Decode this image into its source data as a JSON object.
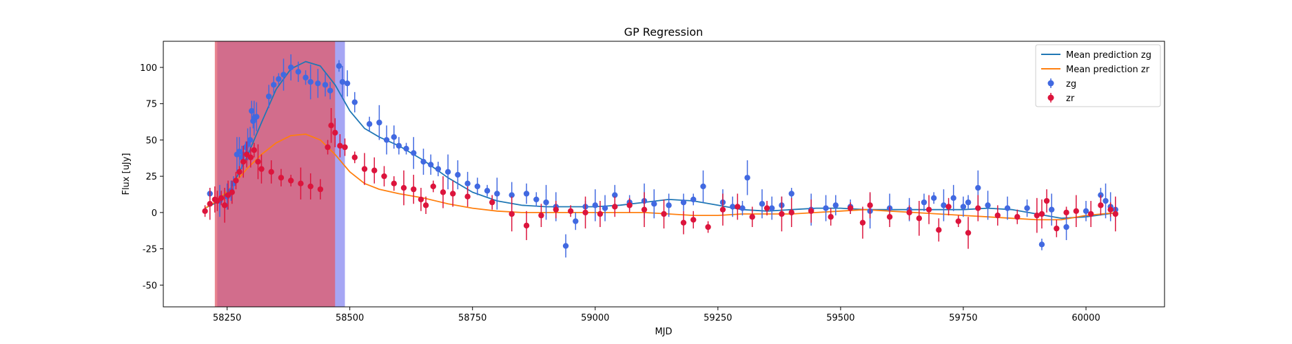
{
  "chart_data": {
    "type": "scatter",
    "title": "GP Regression",
    "xlabel": "MJD",
    "ylabel": "Flux [uJy]",
    "xlim": [
      58120,
      60160
    ],
    "ylim": [
      -65,
      118
    ],
    "xticks": [
      58250,
      58500,
      58750,
      59000,
      59250,
      59500,
      59750,
      60000
    ],
    "yticks": [
      -50,
      -25,
      0,
      25,
      50,
      75,
      100
    ],
    "grid": false,
    "legend_position": "top-right",
    "shaded_regions": [
      {
        "x0": 58230,
        "x1": 58490,
        "color": "#8080f0",
        "label": ""
      },
      {
        "x0": 58225,
        "x1": 58470,
        "color": "#e05a6a",
        "label": ""
      }
    ],
    "series": [
      {
        "name": "Mean prediction zg",
        "kind": "line",
        "color": "#1f77b4",
        "x": [
          58205,
          58230,
          58260,
          58290,
          58320,
          58350,
          58380,
          58410,
          58440,
          58470,
          58500,
          58530,
          58560,
          58600,
          58650,
          58700,
          58750,
          58800,
          58850,
          58900,
          58950,
          59000,
          59050,
          59100,
          59150,
          59200,
          59250,
          59300,
          59350,
          59400,
          59450,
          59500,
          59550,
          59600,
          59650,
          59700,
          59750,
          59800,
          59850,
          59900,
          59950,
          60000,
          60065
        ],
        "y": [
          3,
          7,
          18,
          38,
          62,
          85,
          99,
          104,
          101,
          88,
          70,
          58,
          52,
          46,
          36,
          24,
          14,
          8,
          5,
          4,
          4,
          4,
          5,
          7,
          9,
          8,
          5,
          2,
          1,
          2,
          3,
          3,
          2,
          2,
          2,
          2,
          2,
          3,
          2,
          -1,
          -4,
          -3,
          0
        ]
      },
      {
        "name": "Mean prediction zr",
        "kind": "line",
        "color": "#ff7f0e",
        "x": [
          58205,
          58230,
          58260,
          58290,
          58320,
          58350,
          58380,
          58410,
          58440,
          58470,
          58500,
          58530,
          58560,
          58600,
          58650,
          58700,
          58750,
          58800,
          58850,
          58900,
          58950,
          59000,
          59050,
          59100,
          59150,
          59200,
          59250,
          59300,
          59350,
          59400,
          59450,
          59500,
          59550,
          59600,
          59650,
          59700,
          59750,
          59800,
          59850,
          59900,
          59950,
          60000,
          60065
        ],
        "y": [
          3,
          8,
          18,
          30,
          40,
          48,
          53,
          54,
          50,
          40,
          28,
          20,
          16,
          13,
          10,
          6,
          3,
          1,
          0,
          0,
          0,
          0,
          0,
          0,
          -1,
          -2,
          -2,
          -1,
          -1,
          -1,
          0,
          1,
          2,
          1,
          0,
          -1,
          -2,
          -3,
          -4,
          -5,
          -5,
          -2,
          0
        ]
      },
      {
        "name": "zg",
        "kind": "points",
        "color": "#4169e1",
        "x": [
          58215,
          58235,
          58250,
          58258,
          58263,
          58270,
          58275,
          58280,
          58283,
          58288,
          58292,
          58297,
          58300,
          58303,
          58305,
          58310,
          58335,
          58345,
          58355,
          58365,
          58380,
          58395,
          58410,
          58420,
          58435,
          58450,
          58460,
          58478,
          58485,
          58495,
          58510,
          58540,
          58560,
          58575,
          58590,
          58600,
          58615,
          58630,
          58650,
          58665,
          58680,
          58700,
          58720,
          58740,
          58760,
          58780,
          58800,
          58830,
          58860,
          58880,
          58900,
          58920,
          58940,
          58960,
          58980,
          59000,
          59020,
          59040,
          59070,
          59100,
          59120,
          59150,
          59180,
          59200,
          59220,
          59260,
          59280,
          59300,
          59310,
          59340,
          59360,
          59380,
          59400,
          59440,
          59470,
          59490,
          59520,
          59560,
          59600,
          59640,
          59670,
          59690,
          59710,
          59730,
          59750,
          59760,
          59780,
          59800,
          59840,
          59880,
          59910,
          59930,
          59960,
          60000,
          60030,
          60040,
          60050,
          60060
        ],
        "y": [
          13,
          8,
          11,
          15,
          20,
          40,
          42,
          38,
          40,
          45,
          47,
          50,
          70,
          63,
          65,
          66,
          80,
          88,
          92,
          95,
          100,
          97,
          93,
          90,
          89,
          88,
          84,
          101,
          90,
          89,
          76,
          61,
          62,
          50,
          52,
          46,
          44,
          41,
          35,
          33,
          30,
          28,
          26,
          20,
          18,
          15,
          13,
          12,
          13,
          9,
          7,
          4,
          -23,
          -6,
          4,
          5,
          3,
          12,
          7,
          8,
          6,
          5,
          7,
          9,
          18,
          7,
          4,
          3,
          24,
          6,
          3,
          5,
          13,
          2,
          3,
          5,
          4,
          1,
          3,
          2,
          7,
          10,
          5,
          10,
          4,
          7,
          17,
          5,
          3,
          3,
          -22,
          2,
          -10,
          1,
          12,
          8,
          4,
          2
        ]
      },
      {
        "name": "zr",
        "kind": "points",
        "color": "#dc143c",
        "x": [
          58205,
          58215,
          58225,
          58230,
          58238,
          58245,
          58252,
          58260,
          58268,
          58275,
          58283,
          58290,
          58298,
          58305,
          58313,
          58320,
          58340,
          58360,
          58380,
          58400,
          58420,
          58440,
          58455,
          58462,
          58470,
          58480,
          58490,
          58510,
          58530,
          58550,
          58570,
          58590,
          58610,
          58630,
          58645,
          58655,
          58670,
          58690,
          58710,
          58740,
          58790,
          58830,
          58860,
          58890,
          58920,
          58950,
          58980,
          59010,
          59040,
          59070,
          59100,
          59140,
          59180,
          59200,
          59230,
          59260,
          59290,
          59320,
          59350,
          59380,
          59400,
          59440,
          59480,
          59520,
          59545,
          59560,
          59600,
          59640,
          59660,
          59680,
          59700,
          59720,
          59740,
          59760,
          59780,
          59820,
          59860,
          59900,
          59910,
          59920,
          59940,
          59960,
          59980,
          60010,
          60030,
          60050,
          60060
        ],
        "y": [
          1,
          6,
          9,
          8,
          10,
          5,
          12,
          14,
          22,
          28,
          35,
          40,
          38,
          43,
          35,
          30,
          28,
          24,
          22,
          20,
          18,
          16,
          45,
          60,
          55,
          46,
          45,
          38,
          30,
          29,
          25,
          20,
          17,
          16,
          9,
          5,
          18,
          14,
          13,
          11,
          7,
          -1,
          -9,
          -2,
          2,
          1,
          0,
          -1,
          4,
          5,
          2,
          -1,
          -7,
          -5,
          -10,
          2,
          4,
          -3,
          3,
          -1,
          0,
          1,
          -3,
          3,
          -7,
          5,
          -3,
          0,
          -4,
          2,
          -12,
          4,
          -6,
          -14,
          3,
          -2,
          -3,
          -2,
          -1,
          8,
          -11,
          0,
          1,
          -1,
          5,
          2,
          -1
        ]
      }
    ]
  }
}
